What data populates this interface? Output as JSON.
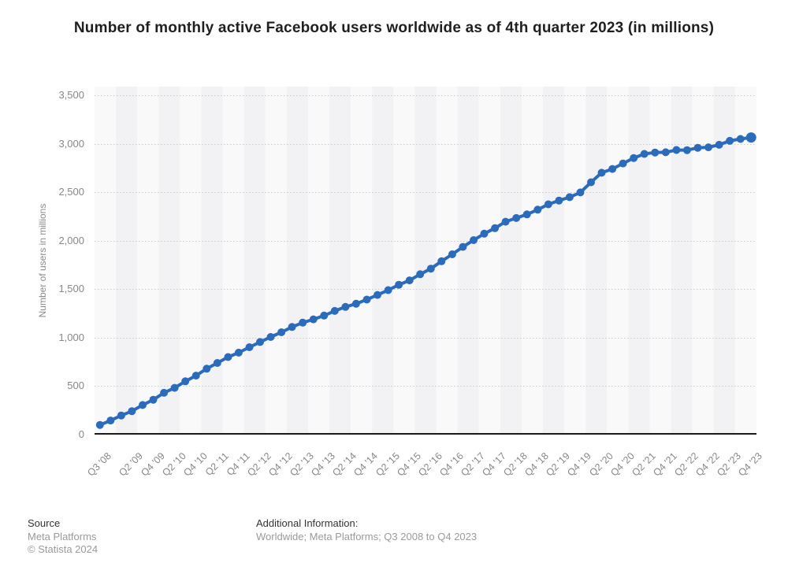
{
  "title": "Number of monthly active Facebook users worldwide as of 4th quarter 2023 (in millions)",
  "footer": {
    "source_label": "Source",
    "source_line1": "Meta Platforms",
    "source_line2": "© Statista 2024",
    "additional_label": "Additional Information:",
    "additional_text": "Worldwide; Meta Platforms; Q3 2008 to Q4 2023"
  },
  "colors": {
    "line": "#2a6cbb",
    "marker": "#2a6cbb",
    "grid": "#c9c9c9",
    "axis": "#1a1a1a",
    "band_light": "#f9f9fa",
    "band_dark": "#f2f2f4",
    "tick_text": "#878787"
  },
  "chart_data": {
    "type": "line",
    "title": "Number of monthly active Facebook users worldwide as of 4th quarter 2023 (in millions)",
    "xlabel": "",
    "ylabel": "Number of users in millions",
    "ylim": [
      0,
      3500
    ],
    "y_ticks": [
      0,
      500,
      1000,
      1500,
      2000,
      2500,
      3000,
      3500
    ],
    "grid": "horizontal-dotted",
    "legend_position": "none",
    "marker": "circle",
    "categories": [
      "Q3 '08",
      "Q4 '08",
      "Q1 '09",
      "Q2 '09",
      "Q3 '09",
      "Q4 '09",
      "Q1 '10",
      "Q2 '10",
      "Q3 '10",
      "Q4 '10",
      "Q1 '11",
      "Q2 '11",
      "Q3 '11",
      "Q4 '11",
      "Q1 '12",
      "Q2 '12",
      "Q3 '12",
      "Q4 '12",
      "Q1 '13",
      "Q2 '13",
      "Q3 '13",
      "Q4 '13",
      "Q1 '14",
      "Q2 '14",
      "Q3 '14",
      "Q4 '14",
      "Q1 '15",
      "Q2 '15",
      "Q3 '15",
      "Q4 '15",
      "Q1 '16",
      "Q2 '16",
      "Q3 '16",
      "Q4 '16",
      "Q1 '17",
      "Q2 '17",
      "Q3 '17",
      "Q4 '17",
      "Q1 '18",
      "Q2 '18",
      "Q3 '18",
      "Q4 '18",
      "Q1 '19",
      "Q2 '19",
      "Q3 '19",
      "Q4 '19",
      "Q1 '20",
      "Q2 '20",
      "Q3 '20",
      "Q4 '20",
      "Q1 '21",
      "Q2 '21",
      "Q3 '21",
      "Q4 '21",
      "Q1 '22",
      "Q2 '22",
      "Q3 '22",
      "Q4 '22",
      "Q1 '23",
      "Q2 '23",
      "Q3 '23",
      "Q4 '23"
    ],
    "values": [
      100,
      145,
      197,
      242,
      305,
      360,
      431,
      482,
      550,
      608,
      680,
      739,
      800,
      845,
      901,
      955,
      1007,
      1056,
      1110,
      1155,
      1189,
      1228,
      1276,
      1317,
      1350,
      1393,
      1441,
      1490,
      1545,
      1591,
      1654,
      1712,
      1788,
      1860,
      1936,
      2006,
      2072,
      2129,
      2196,
      2234,
      2271,
      2320,
      2375,
      2414,
      2449,
      2498,
      2603,
      2701,
      2740,
      2797,
      2853,
      2895,
      2910,
      2912,
      2936,
      2934,
      2958,
      2963,
      2989,
      3030,
      3049,
      3065
    ],
    "x_tick_rule": "first point, then every even-numbered quarter (Q2/Q4) of each year"
  }
}
